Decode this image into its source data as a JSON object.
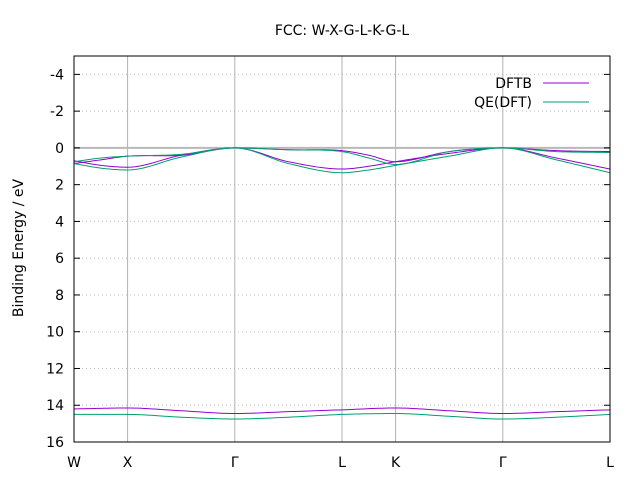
{
  "chart_data": {
    "type": "line",
    "title": "FCC: W-X-G-L-K-G-L",
    "ylabel": "Binding Energy / eV",
    "xlabel": "",
    "xlim": [
      0,
      10
    ],
    "ylim": [
      16,
      -5
    ],
    "y_inverted": true,
    "yticks": [
      -4,
      -2,
      0,
      2,
      4,
      6,
      8,
      10,
      12,
      14,
      16
    ],
    "xticks": [
      {
        "label": "W",
        "x": 0
      },
      {
        "label": "X",
        "x": 1
      },
      {
        "label": "Γ",
        "x": 3
      },
      {
        "label": "L",
        "x": 5
      },
      {
        "label": "K",
        "x": 6
      },
      {
        "label": "Γ",
        "x": 8
      },
      {
        "label": "L",
        "x": 10
      }
    ],
    "fermi_level": 0,
    "grid": true,
    "legend": "top-right",
    "series": [
      {
        "name": "DFTB",
        "color": "#9400d3",
        "bands": [
          {
            "x": [
              0,
              0.5,
              1,
              2,
              3,
              4,
              5,
              5.5,
              6,
              7,
              8,
              9,
              10
            ],
            "y": [
              0.85,
              0.65,
              0.45,
              0.4,
              0,
              0.1,
              0.15,
              0.4,
              0.75,
              0.2,
              0,
              0.15,
              0.2
            ]
          },
          {
            "x": [
              0,
              0.5,
              1,
              2,
              3,
              4,
              5,
              5.5,
              6,
              7,
              8,
              9,
              10
            ],
            "y": [
              0.7,
              0.95,
              1.05,
              0.4,
              0,
              0.75,
              1.15,
              1.0,
              0.75,
              0.3,
              0,
              0.55,
              1.15
            ]
          },
          {
            "x": [
              0,
              1,
              2,
              3,
              4,
              5,
              6,
              7,
              8,
              9,
              10
            ],
            "y": [
              14.2,
              14.15,
              14.3,
              14.45,
              14.35,
              14.25,
              14.15,
              14.3,
              14.45,
              14.35,
              14.25
            ]
          }
        ]
      },
      {
        "name": "QE(DFT)",
        "color": "#009e73",
        "bands": [
          {
            "x": [
              0,
              0.5,
              1,
              2,
              3,
              4,
              5,
              5.5,
              6,
              7,
              8,
              9,
              10
            ],
            "y": [
              0.75,
              0.55,
              0.45,
              0.35,
              0,
              0.1,
              0.2,
              0.55,
              0.9,
              0.2,
              0,
              0.2,
              0.25
            ]
          },
          {
            "x": [
              0,
              0.5,
              1,
              2,
              3,
              4,
              5,
              5.5,
              6,
              7,
              8,
              9,
              10
            ],
            "y": [
              0.85,
              1.1,
              1.2,
              0.5,
              0,
              0.85,
              1.35,
              1.2,
              0.95,
              0.45,
              0,
              0.65,
              1.35
            ]
          },
          {
            "x": [
              0,
              1,
              2,
              3,
              4,
              5,
              6,
              7,
              8,
              9,
              10
            ],
            "y": [
              14.5,
              14.5,
              14.65,
              14.75,
              14.65,
              14.5,
              14.45,
              14.6,
              14.75,
              14.65,
              14.5
            ]
          }
        ]
      }
    ]
  }
}
